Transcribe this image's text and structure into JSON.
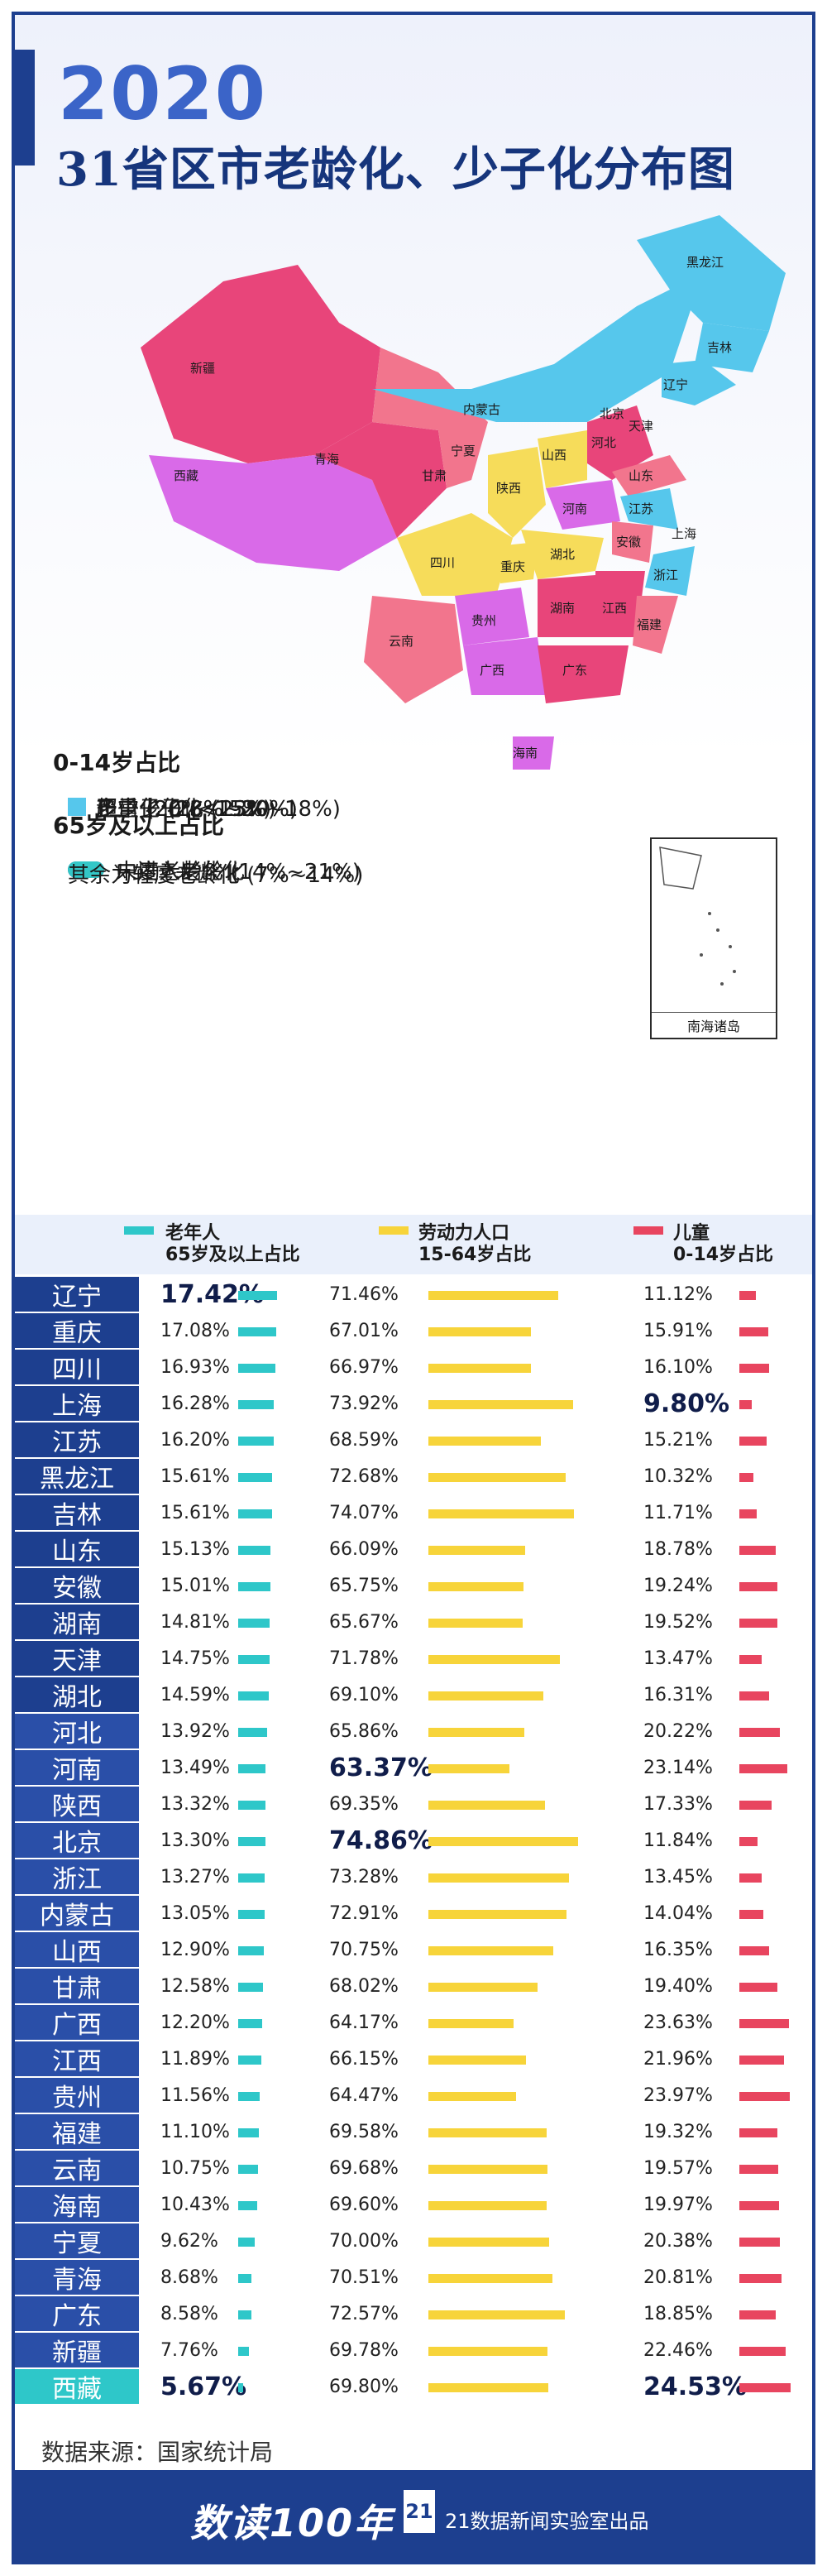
{
  "header": {
    "year": "2020",
    "title": "31省区市老龄化、少子化分布图"
  },
  "colors": {
    "navy": "#1d3f8f",
    "many_children": "#d96ae8",
    "normal": "#e8457a",
    "few_children": "#f2758d",
    "severe_few": "#f6dc5a",
    "super_few": "#56c7ec",
    "moderate_aging": "#1d3f8f",
    "not_aging": "#34c7c7",
    "old_bar": "#2ec7c9",
    "labor_bar": "#f7d43a",
    "child_bar": "#e8455f"
  },
  "map": {
    "labels": [
      "黑龙江",
      "吉林",
      "辽宁",
      "内蒙古",
      "新疆",
      "西藏",
      "青海",
      "甘肃",
      "宁夏",
      "山西",
      "河北",
      "北京",
      "天津",
      "山东",
      "陕西",
      "河南",
      "江苏",
      "安徽",
      "上海",
      "四川",
      "重庆",
      "湖北",
      "浙江",
      "贵州",
      "湖南",
      "江西",
      "福建",
      "云南",
      "广西",
      "广东",
      "海南"
    ],
    "inset_label": "南海诸岛"
  },
  "legend": {
    "child_title": "0-14岁占比",
    "child_items": [
      {
        "label": "多子化 (23%~30%)",
        "color_key": "many_children"
      },
      {
        "label": "正常 (20%~23%)",
        "color_key": "normal"
      },
      {
        "label": "少子化 (18%~20%)",
        "color_key": "few_children"
      },
      {
        "label": "严重少子化 (15%~18%)",
        "color_key": "severe_few"
      },
      {
        "label": "超少子化 (<15%)",
        "color_key": "super_few"
      }
    ],
    "old_title": "65岁及以上占比",
    "old_items": [
      {
        "label": "中度老龄化 (14%~21%)",
        "color_key": "moderate_aging"
      },
      {
        "label": "未进入老龄化",
        "color_key": "not_aging"
      }
    ],
    "note": "其余为轻度老龄化 (7%~14%)"
  },
  "chart_data": {
    "type": "table",
    "columns": [
      {
        "name": "老年人",
        "sub": "65岁及以上占比"
      },
      {
        "name": "劳动力人口",
        "sub": "15-64岁占比"
      },
      {
        "name": "儿童",
        "sub": "0-14岁占比"
      }
    ],
    "rows": [
      {
        "province": "辽宁",
        "old": "17.42%",
        "labor": "71.46%",
        "child": "11.12%"
      },
      {
        "province": "重庆",
        "old": "17.08%",
        "labor": "67.01%",
        "child": "15.91%"
      },
      {
        "province": "四川",
        "old": "16.93%",
        "labor": "66.97%",
        "child": "16.10%"
      },
      {
        "province": "上海",
        "old": "16.28%",
        "labor": "73.92%",
        "child": "9.80%"
      },
      {
        "province": "江苏",
        "old": "16.20%",
        "labor": "68.59%",
        "child": "15.21%"
      },
      {
        "province": "黑龙江",
        "old": "15.61%",
        "labor": "72.68%",
        "child": "10.32%"
      },
      {
        "province": "吉林",
        "old": "15.61%",
        "labor": "74.07%",
        "child": "11.71%"
      },
      {
        "province": "山东",
        "old": "15.13%",
        "labor": "66.09%",
        "child": "18.78%"
      },
      {
        "province": "安徽",
        "old": "15.01%",
        "labor": "65.75%",
        "child": "19.24%"
      },
      {
        "province": "湖南",
        "old": "14.81%",
        "labor": "65.67%",
        "child": "19.52%"
      },
      {
        "province": "天津",
        "old": "14.75%",
        "labor": "71.78%",
        "child": "13.47%"
      },
      {
        "province": "湖北",
        "old": "14.59%",
        "labor": "69.10%",
        "child": "16.31%"
      },
      {
        "province": "河北",
        "old": "13.92%",
        "labor": "65.86%",
        "child": "20.22%"
      },
      {
        "province": "河南",
        "old": "13.49%",
        "labor": "63.37%",
        "child": "23.14%"
      },
      {
        "province": "陕西",
        "old": "13.32%",
        "labor": "69.35%",
        "child": "17.33%"
      },
      {
        "province": "北京",
        "old": "13.30%",
        "labor": "74.86%",
        "child": "11.84%"
      },
      {
        "province": "浙江",
        "old": "13.27%",
        "labor": "73.28%",
        "child": "13.45%"
      },
      {
        "province": "内蒙古",
        "old": "13.05%",
        "labor": "72.91%",
        "child": "14.04%"
      },
      {
        "province": "山西",
        "old": "12.90%",
        "labor": "70.75%",
        "child": "16.35%"
      },
      {
        "province": "甘肃",
        "old": "12.58%",
        "labor": "68.02%",
        "child": "19.40%"
      },
      {
        "province": "广西",
        "old": "12.20%",
        "labor": "64.17%",
        "child": "23.63%"
      },
      {
        "province": "江西",
        "old": "11.89%",
        "labor": "66.15%",
        "child": "21.96%"
      },
      {
        "province": "贵州",
        "old": "11.56%",
        "labor": "64.47%",
        "child": "23.97%"
      },
      {
        "province": "福建",
        "old": "11.10%",
        "labor": "69.58%",
        "child": "19.32%"
      },
      {
        "province": "云南",
        "old": "10.75%",
        "labor": "69.68%",
        "child": "19.57%"
      },
      {
        "province": "海南",
        "old": "10.43%",
        "labor": "69.60%",
        "child": "19.97%"
      },
      {
        "province": "宁夏",
        "old": "9.62%",
        "labor": "70.00%",
        "child": "20.38%"
      },
      {
        "province": "青海",
        "old": "8.68%",
        "labor": "70.51%",
        "child": "20.81%"
      },
      {
        "province": "广东",
        "old": "8.58%",
        "labor": "72.57%",
        "child": "18.85%"
      },
      {
        "province": "新疆",
        "old": "7.76%",
        "labor": "69.78%",
        "child": "22.46%"
      },
      {
        "province": "西藏",
        "old": "5.67%",
        "labor": "69.80%",
        "child": "24.53%"
      }
    ],
    "highlight": {
      "old_max": "辽宁",
      "old_min": "西藏",
      "labor_max": "北京",
      "labor_min": "河南",
      "child_max": "西藏",
      "child_min": "上海"
    }
  },
  "footer": {
    "source": "数据来源：国家统计局",
    "brand": "数读100年",
    "logo": "21",
    "credit": "21数据新闻实验室出品"
  }
}
